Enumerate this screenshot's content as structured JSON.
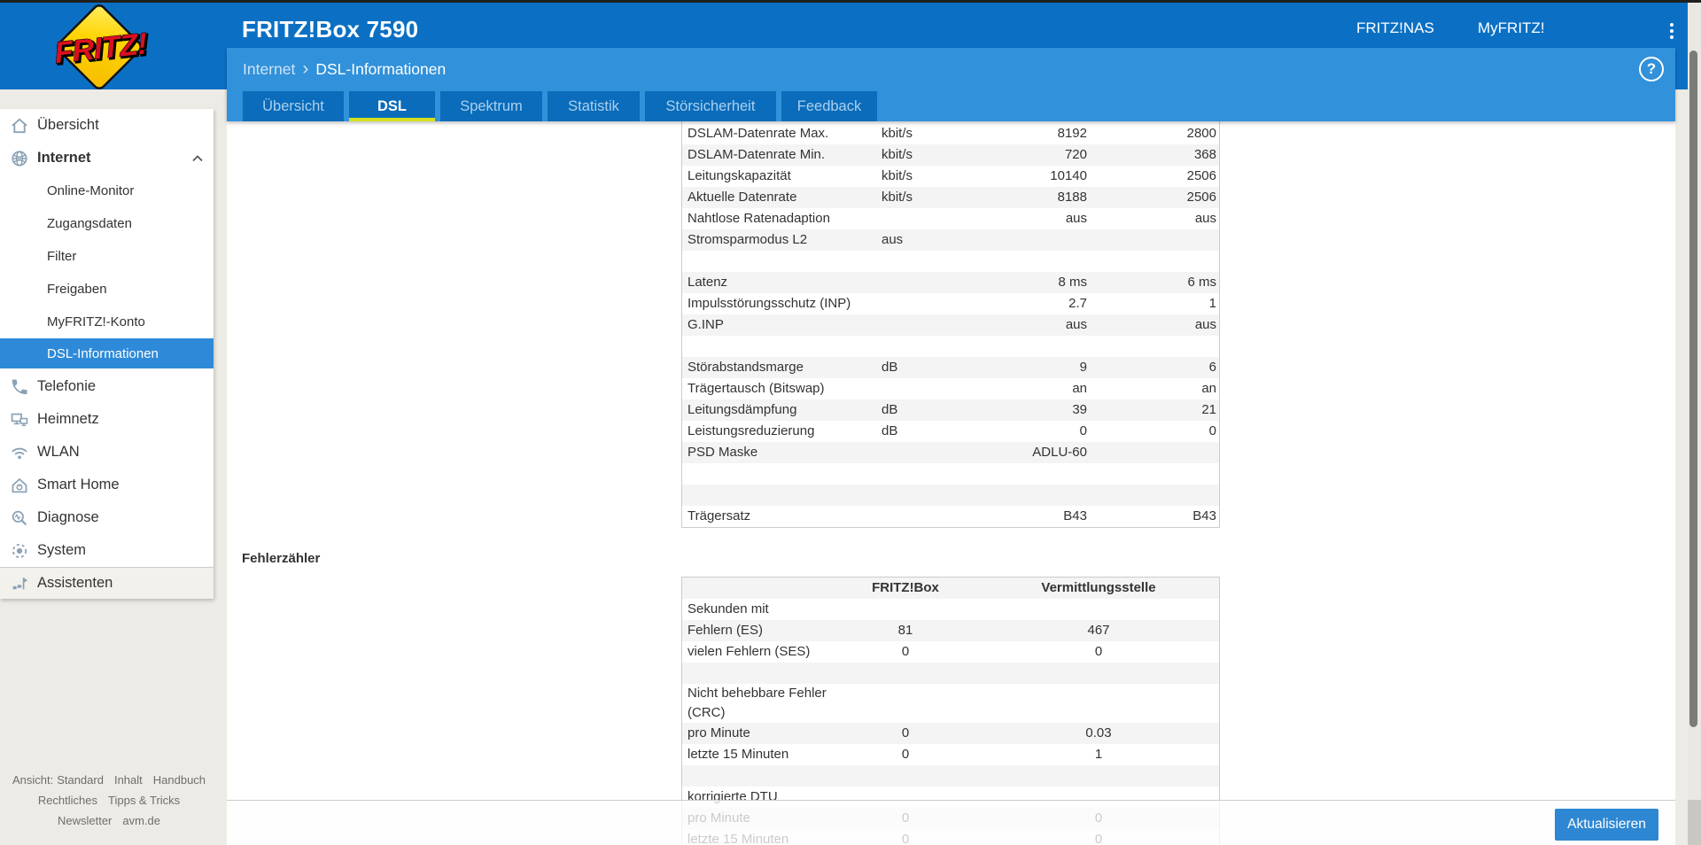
{
  "header": {
    "logo": "FRITZ!",
    "title": "FRITZ!Box 7590",
    "nav": [
      {
        "label": "FRITZ!NAS"
      },
      {
        "label": "MyFRITZ!"
      }
    ],
    "menu_icon": "kebab-menu-icon"
  },
  "breadcrumb": {
    "section": "Internet",
    "separator": "›",
    "page": "DSL-Informationen",
    "help_icon": "?"
  },
  "tabs": [
    {
      "label": "Übersicht",
      "active": false
    },
    {
      "label": "DSL",
      "active": true
    },
    {
      "label": "Spektrum",
      "active": false
    },
    {
      "label": "Statistik",
      "active": false
    },
    {
      "label": "Störsicherheit",
      "active": false
    },
    {
      "label": "Feedback",
      "active": false
    }
  ],
  "sidebar": {
    "items": [
      {
        "label": "Übersicht",
        "icon": "home-icon",
        "type": "top"
      },
      {
        "label": "Internet",
        "icon": "globe-icon",
        "type": "top",
        "bold": true,
        "expanded": true
      },
      {
        "label": "Online-Monitor",
        "type": "sub"
      },
      {
        "label": "Zugangsdaten",
        "type": "sub"
      },
      {
        "label": "Filter",
        "type": "sub"
      },
      {
        "label": "Freigaben",
        "type": "sub"
      },
      {
        "label": "MyFRITZ!-Konto",
        "type": "sub"
      },
      {
        "label": "DSL-Informationen",
        "type": "sub",
        "active": true
      },
      {
        "label": "Telefonie",
        "icon": "phone-icon",
        "type": "top"
      },
      {
        "label": "Heimnetz",
        "icon": "network-icon",
        "type": "top"
      },
      {
        "label": "WLAN",
        "icon": "wifi-icon",
        "type": "top"
      },
      {
        "label": "Smart Home",
        "icon": "smart-home-icon",
        "type": "top"
      },
      {
        "label": "Diagnose",
        "icon": "diagnose-icon",
        "type": "top"
      },
      {
        "label": "System",
        "icon": "system-icon",
        "type": "top"
      },
      {
        "label": "Assistenten",
        "icon": "assistant-icon",
        "type": "top",
        "pinned": true
      }
    ],
    "footer_lines": [
      [
        {
          "label": "Ansicht:",
          "link": false
        },
        {
          "label": "Standard",
          "link": true
        },
        {
          "label": "Inhalt",
          "link": true
        },
        {
          "label": "Handbuch",
          "link": true
        }
      ],
      [
        {
          "label": "Rechtliches",
          "link": true
        },
        {
          "label": "Tipps & Tricks",
          "link": true
        }
      ],
      [
        {
          "label": "Newsletter",
          "link": true
        },
        {
          "label": "avm.de",
          "link": true
        }
      ]
    ]
  },
  "content": {
    "dsl_table": {
      "rows": [
        {
          "label": "DSLAM-Datenrate Max.",
          "unit": "kbit/s",
          "fritzbox": "8192",
          "exchange": "2800"
        },
        {
          "label": "DSLAM-Datenrate Min.",
          "unit": "kbit/s",
          "fritzbox": "720",
          "exchange": "368"
        },
        {
          "label": "Leitungskapazität",
          "unit": "kbit/s",
          "fritzbox": "10140",
          "exchange": "2506"
        },
        {
          "label": "Aktuelle Datenrate",
          "unit": "kbit/s",
          "fritzbox": "8188",
          "exchange": "2506"
        },
        {
          "label": "Nahtlose Ratenadaption",
          "unit": "",
          "fritzbox": "aus",
          "exchange": "aus"
        },
        {
          "label": "Stromsparmodus L2",
          "unit": "aus",
          "fritzbox": "",
          "exchange": ""
        },
        {
          "label": "",
          "unit": "",
          "fritzbox": "",
          "exchange": ""
        },
        {
          "label": "Latenz",
          "unit": "",
          "fritzbox": "8 ms",
          "exchange": "6 ms"
        },
        {
          "label": "Impulsstörungsschutz (INP)",
          "unit": "",
          "fritzbox": "2.7",
          "exchange": "1"
        },
        {
          "label": "G.INP",
          "unit": "",
          "fritzbox": "aus",
          "exchange": "aus"
        },
        {
          "label": "",
          "unit": "",
          "fritzbox": "",
          "exchange": ""
        },
        {
          "label": "Störabstandsmarge",
          "unit": "dB",
          "fritzbox": "9",
          "exchange": "6"
        },
        {
          "label": "Trägertausch (Bitswap)",
          "unit": "",
          "fritzbox": "an",
          "exchange": "an"
        },
        {
          "label": "Leitungsdämpfung",
          "unit": "dB",
          "fritzbox": "39",
          "exchange": "21"
        },
        {
          "label": "Leistungsreduzierung",
          "unit": "dB",
          "fritzbox": "0",
          "exchange": "0"
        },
        {
          "label": "PSD Maske",
          "unit": "",
          "fritzbox": "ADLU-60",
          "exchange": ""
        },
        {
          "label": "",
          "unit": "",
          "fritzbox": "",
          "exchange": ""
        },
        {
          "label": "",
          "unit": "",
          "fritzbox": "",
          "exchange": ""
        },
        {
          "label": "Trägersatz",
          "unit": "",
          "fritzbox": "B43",
          "exchange": "B43"
        }
      ]
    },
    "section_heading": "Fehlerzähler",
    "error_table": {
      "headers": {
        "fritzbox": "FRITZ!Box",
        "exchange": "Vermittlungsstelle"
      },
      "rows": [
        {
          "label": "Sekunden mit",
          "fritzbox": "",
          "exchange": ""
        },
        {
          "label": "Fehlern (ES)",
          "fritzbox": "81",
          "exchange": "467"
        },
        {
          "label": "vielen Fehlern (SES)",
          "fritzbox": "0",
          "exchange": "0"
        },
        {
          "label": "",
          "fritzbox": "",
          "exchange": ""
        },
        {
          "label": "Nicht behebbare Fehler (CRC)",
          "fritzbox": "",
          "exchange": ""
        },
        {
          "label": "pro Minute",
          "fritzbox": "0",
          "exchange": "0.03"
        },
        {
          "label": "letzte 15 Minuten",
          "fritzbox": "0",
          "exchange": "1"
        },
        {
          "label": "",
          "fritzbox": "",
          "exchange": ""
        },
        {
          "label": "korrigierte DTU",
          "fritzbox": "",
          "exchange": ""
        },
        {
          "label": "pro Minute",
          "fritzbox": "0",
          "exchange": "0"
        },
        {
          "label": "letzte 15 Minuten",
          "fritzbox": "0",
          "exchange": "0"
        }
      ]
    },
    "refresh_button": "Aktualisieren"
  },
  "colors": {
    "header_blue": "#0b70c4",
    "tab_blue": "#0a6cba",
    "band_blue": "#3191da",
    "active_blue": "#2e8ad8",
    "button_blue": "#2e87d2",
    "accent_yellow": "#d6e021",
    "stripe_gray": "#f4f4f4",
    "page_gray": "#edebe5",
    "icon_steel": "#8da3b7",
    "logo_yellow": "#ffd400",
    "logo_red": "#da1020"
  }
}
